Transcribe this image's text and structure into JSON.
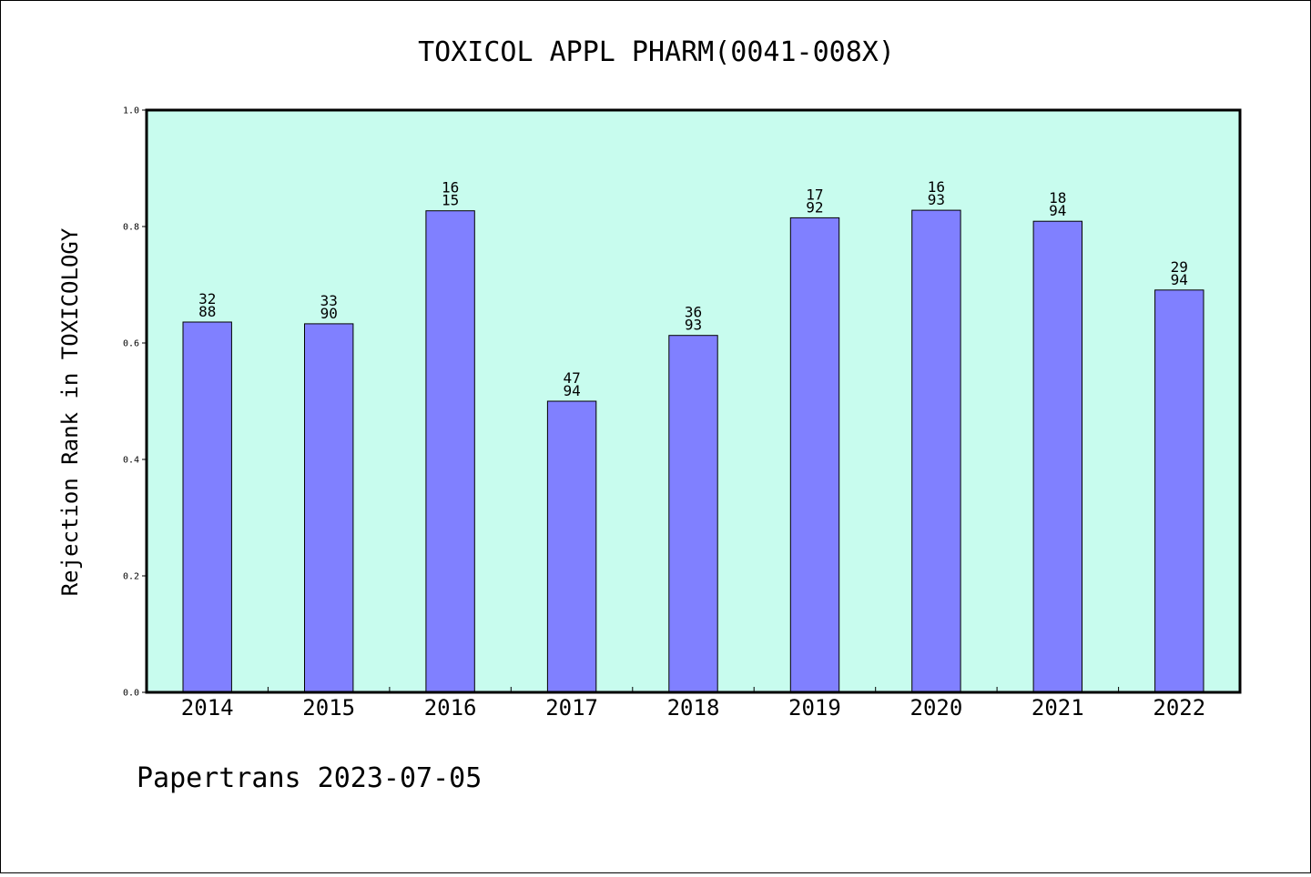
{
  "chart_data": {
    "type": "bar",
    "title": "TOXICOL APPL PHARM(0041-008X)",
    "xlabel": "",
    "ylabel": "Rejection Rank in TOXICOLOGY",
    "ylim": [
      0,
      1.0
    ],
    "yticks": [
      "0.0",
      "0.2",
      "0.4",
      "0.6",
      "0.8",
      "1.0"
    ],
    "categories": [
      "2014",
      "2015",
      "2016",
      "2017",
      "2018",
      "2019",
      "2020",
      "2021",
      "2022"
    ],
    "values": [
      0.636,
      0.633,
      0.827,
      0.5,
      0.613,
      0.815,
      0.828,
      0.809,
      0.691
    ],
    "labels_top": [
      "32",
      "33",
      "16",
      "47",
      "36",
      "17",
      "16",
      "18",
      "29"
    ],
    "labels_bottom": [
      "88",
      "90",
      "15",
      "94",
      "93",
      "92",
      "93",
      "94",
      "94"
    ],
    "grid": false,
    "colors": {
      "plot_background": "#c8fcee",
      "bar_fill": "#8080ff",
      "bar_stroke": "#000000"
    }
  },
  "footer": "Papertrans 2023-07-05"
}
